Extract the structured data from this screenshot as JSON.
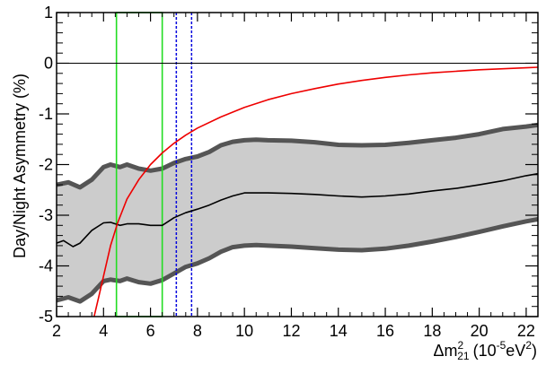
{
  "chart_data": {
    "type": "line",
    "xlabel": "Δm",
    "xlabel_sup": "2",
    "xlabel_sub": "21",
    "xlabel_unit_pre": "(10",
    "xlabel_unit_sup": "-5",
    "xlabel_unit_post": "eV",
    "xlabel_unit_sup2": "2",
    "xlabel_unit_end": ")",
    "ylabel": "Day/Night Asymmetry (%)",
    "xlim": [
      2,
      22.5
    ],
    "ylim": [
      -5,
      1
    ],
    "x_ticks": [
      2,
      4,
      6,
      8,
      10,
      12,
      14,
      16,
      18,
      20,
      22
    ],
    "y_ticks": [
      1,
      0,
      -1,
      -2,
      -3,
      -4,
      -5
    ],
    "zero_line": 0,
    "band": {
      "color": "#cccccc",
      "edge_color": "#555555",
      "x": [
        2.0,
        2.5,
        3.0,
        3.5,
        4.0,
        4.3,
        4.7,
        5.0,
        5.5,
        6.0,
        6.5,
        7.0,
        7.5,
        8.0,
        8.5,
        9.0,
        9.5,
        10.0,
        10.5,
        11.0,
        12.0,
        13.0,
        14.0,
        15.0,
        16.0,
        17.0,
        18.0,
        19.0,
        20.0,
        21.0,
        22.0,
        22.5
      ],
      "upper": [
        -2.4,
        -2.35,
        -2.45,
        -2.3,
        -2.05,
        -2.0,
        -2.05,
        -2.0,
        -2.08,
        -2.12,
        -2.08,
        -1.97,
        -1.89,
        -1.84,
        -1.75,
        -1.62,
        -1.55,
        -1.52,
        -1.51,
        -1.52,
        -1.53,
        -1.56,
        -1.61,
        -1.62,
        -1.61,
        -1.57,
        -1.52,
        -1.47,
        -1.4,
        -1.3,
        -1.25,
        -1.22
      ],
      "lower": [
        -4.68,
        -4.62,
        -4.7,
        -4.55,
        -4.3,
        -4.27,
        -4.3,
        -4.25,
        -4.32,
        -4.35,
        -4.28,
        -4.15,
        -4.02,
        -3.95,
        -3.85,
        -3.72,
        -3.63,
        -3.6,
        -3.59,
        -3.6,
        -3.62,
        -3.65,
        -3.68,
        -3.69,
        -3.66,
        -3.6,
        -3.52,
        -3.43,
        -3.33,
        -3.22,
        -3.12,
        -3.08
      ]
    },
    "series": [
      {
        "color": "#000000",
        "x": [
          2.0,
          2.3,
          2.7,
          3.0,
          3.5,
          4.0,
          4.3,
          4.7,
          5.0,
          5.5,
          6.0,
          6.5,
          7.0,
          7.5,
          8.0,
          8.5,
          9.0,
          9.5,
          10.0,
          10.5,
          11.0,
          12.0,
          13.0,
          14.0,
          15.0,
          16.0,
          17.0,
          18.0,
          19.0,
          20.0,
          21.0,
          22.0,
          22.5
        ],
        "y": [
          -3.55,
          -3.5,
          -3.62,
          -3.55,
          -3.3,
          -3.15,
          -3.14,
          -3.2,
          -3.17,
          -3.17,
          -3.2,
          -3.2,
          -3.05,
          -2.95,
          -2.88,
          -2.8,
          -2.7,
          -2.62,
          -2.56,
          -2.56,
          -2.56,
          -2.57,
          -2.59,
          -2.62,
          -2.64,
          -2.62,
          -2.58,
          -2.52,
          -2.47,
          -2.4,
          -2.32,
          -2.22,
          -2.18
        ]
      },
      {
        "color": "#ee0000",
        "x": [
          3.6,
          3.8,
          4.0,
          4.3,
          4.6,
          5.0,
          5.5,
          6.0,
          6.5,
          7.0,
          7.5,
          8.0,
          9.0,
          10.0,
          11.0,
          12.0,
          13.0,
          14.0,
          15.0,
          16.0,
          17.0,
          18.0,
          19.0,
          20.0,
          21.0,
          22.0,
          22.5
        ],
        "y": [
          -5.0,
          -4.6,
          -4.2,
          -3.6,
          -3.15,
          -2.68,
          -2.3,
          -2.0,
          -1.77,
          -1.58,
          -1.42,
          -1.28,
          -1.06,
          -0.87,
          -0.72,
          -0.6,
          -0.5,
          -0.41,
          -0.34,
          -0.28,
          -0.23,
          -0.19,
          -0.16,
          -0.13,
          -0.11,
          -0.09,
          -0.08
        ]
      }
    ],
    "green_box": {
      "color": "#22dd22",
      "x0": 4.55,
      "x1": 6.5
    },
    "blue_dashed_lines": {
      "color": "#0000dd",
      "x": [
        7.1,
        7.75
      ]
    }
  }
}
